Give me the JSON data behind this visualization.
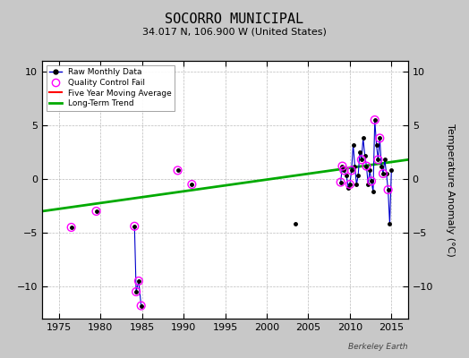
{
  "title": "SOCORRO MUNICIPAL",
  "subtitle": "34.017 N, 106.900 W (United States)",
  "ylabel": "Temperature Anomaly (°C)",
  "watermark": "Berkeley Earth",
  "xlim": [
    1973,
    2017
  ],
  "ylim": [
    -13,
    11
  ],
  "xticks": [
    1975,
    1980,
    1985,
    1990,
    1995,
    2000,
    2005,
    2010,
    2015
  ],
  "yticks": [
    -10,
    -5,
    0,
    5,
    10
  ],
  "bg_color": "#c8c8c8",
  "plot_bg_color": "#ffffff",
  "segment_groups": [
    {
      "x": [
        1984.1,
        1984.3,
        1984.6,
        1984.9
      ],
      "y": [
        -4.4,
        -10.5,
        -9.5,
        -11.8
      ]
    },
    {
      "x": [
        2008.9,
        2009.1,
        2009.3,
        2009.6,
        2009.8,
        2010.0,
        2010.2,
        2010.4,
        2010.6,
        2010.8,
        2011.0,
        2011.2,
        2011.4,
        2011.6,
        2011.8,
        2012.0,
        2012.2,
        2012.4,
        2012.6,
        2012.8,
        2013.0,
        2013.2,
        2013.4,
        2013.6,
        2013.8,
        2014.0,
        2014.2,
        2014.4,
        2014.6,
        2014.8,
        2015.0
      ],
      "y": [
        -0.3,
        1.2,
        0.8,
        0.3,
        -0.8,
        -0.5,
        0.8,
        3.2,
        1.2,
        -0.5,
        0.3,
        2.5,
        1.8,
        3.8,
        2.2,
        1.2,
        -0.5,
        0.8,
        -0.2,
        -1.2,
        5.5,
        3.2,
        1.8,
        3.8,
        1.2,
        0.5,
        1.8,
        0.5,
        -1.0,
        -4.2,
        0.8
      ]
    }
  ],
  "isolated_points": {
    "x": [
      1976.5,
      1979.5,
      1989.3,
      1991.0,
      2003.5
    ],
    "y": [
      -4.5,
      -3.0,
      0.8,
      -0.5,
      -4.2
    ]
  },
  "qc_fail": [
    [
      1976.5,
      -4.5
    ],
    [
      1979.5,
      -3.0
    ],
    [
      1984.1,
      -4.4
    ],
    [
      1984.3,
      -10.5
    ],
    [
      1984.6,
      -9.5
    ],
    [
      1984.9,
      -11.8
    ],
    [
      1989.3,
      0.8
    ],
    [
      1991.0,
      -0.5
    ],
    [
      2008.9,
      -0.3
    ],
    [
      2009.1,
      1.2
    ],
    [
      2009.3,
      0.8
    ],
    [
      2010.0,
      -0.5
    ],
    [
      2010.2,
      0.8
    ],
    [
      2011.4,
      1.8
    ],
    [
      2012.0,
      1.2
    ],
    [
      2012.6,
      -0.2
    ],
    [
      2013.0,
      5.5
    ],
    [
      2013.4,
      1.8
    ],
    [
      2013.6,
      3.8
    ],
    [
      2014.0,
      0.5
    ],
    [
      2014.6,
      -1.0
    ]
  ],
  "trend_x": [
    1973,
    2017
  ],
  "trend_y": [
    -3.0,
    1.8
  ],
  "colors": {
    "raw_line": "#0000cc",
    "raw_dot": "#000000",
    "qc_circle": "#ff00ff",
    "trend_line": "#00aa00",
    "moving_avg": "#ff0000",
    "bg": "#c8c8c8"
  },
  "title_fontsize": 11,
  "subtitle_fontsize": 8,
  "tick_fontsize": 8,
  "ylabel_fontsize": 8
}
